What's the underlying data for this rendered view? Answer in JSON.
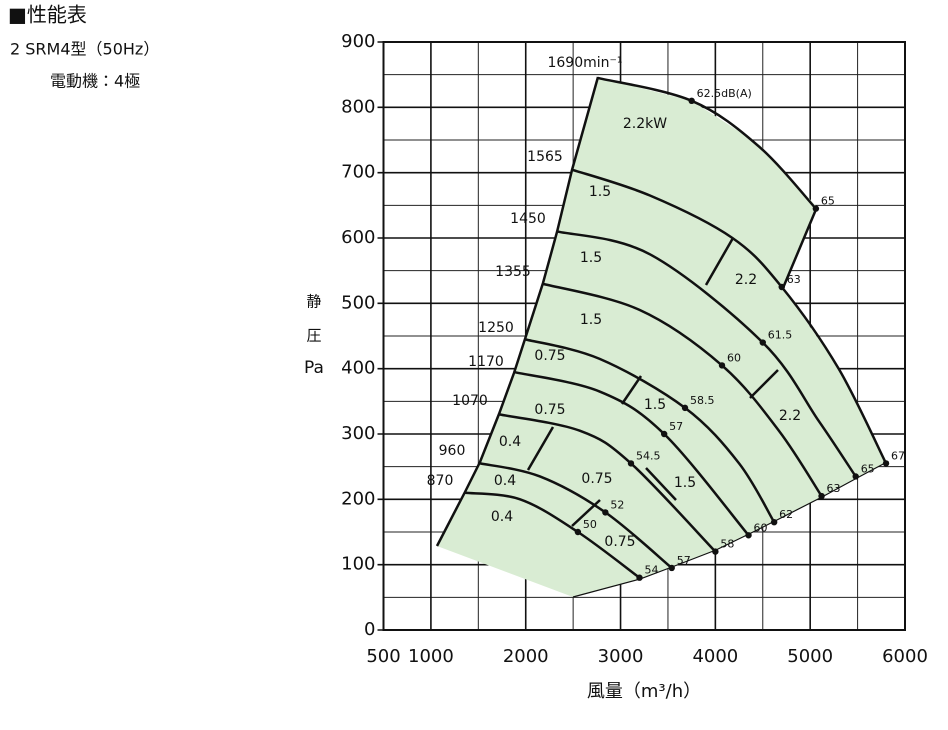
{
  "chart_data": {
    "type": "line",
    "title": "■性能表",
    "subtitle": "2 SRM4型（50Hz）",
    "note": "電動機：4極",
    "xlabel": "風量（m³/h）",
    "ylabel": [
      "静",
      "圧",
      "Pa"
    ],
    "xlim": [
      500,
      6000
    ],
    "xticks": [
      500,
      1000,
      2000,
      3000,
      4000,
      5000,
      6000
    ],
    "ylim": [
      0,
      900
    ],
    "yticks": [
      0,
      100,
      200,
      300,
      400,
      500,
      600,
      700,
      800,
      900
    ],
    "grid": true,
    "area_color": "#d9ecd3",
    "series": [
      {
        "name": "1690min⁻¹",
        "color": "#111111",
        "x": [
          2760,
          3750,
          4460,
          5060
        ],
        "y": [
          845,
          810,
          740,
          645
        ]
      },
      {
        "name": "1565",
        "color": "#111111",
        "x": [
          2480,
          3310,
          4180,
          4700,
          5300,
          5800
        ],
        "y": [
          705,
          665,
          600,
          525,
          400,
          255
        ]
      },
      {
        "name": "1450",
        "color": "#111111",
        "x": [
          2330,
          3310,
          4500,
          5090,
          5480
        ],
        "y": [
          610,
          575,
          440,
          320,
          235
        ]
      },
      {
        "name": "1355",
        "color": "#111111",
        "x": [
          2180,
          3200,
          4070,
          4670,
          5120
        ],
        "y": [
          530,
          490,
          405,
          305,
          205
        ]
      },
      {
        "name": "1250",
        "color": "#111111",
        "x": [
          1990,
          2780,
          3680,
          4250,
          4620
        ],
        "y": [
          445,
          415,
          340,
          255,
          165
        ]
      },
      {
        "name": "1170",
        "color": "#111111",
        "x": [
          1870,
          2780,
          3460,
          4350
        ],
        "y": [
          395,
          365,
          300,
          145
        ]
      },
      {
        "name": "1070",
        "color": "#111111",
        "x": [
          1720,
          2570,
          3110,
          4000
        ],
        "y": [
          330,
          305,
          255,
          120
        ]
      },
      {
        "name": "960",
        "color": "#111111",
        "x": [
          1520,
          2150,
          2840,
          3540
        ],
        "y": [
          255,
          235,
          180,
          95
        ]
      },
      {
        "name": "870",
        "color": "#111111",
        "x": [
          1360,
          1940,
          2550,
          3200
        ],
        "y": [
          210,
          200,
          150,
          80
        ]
      }
    ],
    "noise": {
      "x": [
        3750,
        5060,
        4700,
        4500,
        4070,
        3680,
        3460,
        3110,
        2840,
        2550,
        5800,
        5480,
        5120,
        4620,
        4350,
        4000,
        3540,
        3200
      ],
      "y": [
        810,
        645,
        525,
        440,
        405,
        340,
        300,
        255,
        180,
        150,
        255,
        235,
        205,
        165,
        145,
        120,
        95,
        80
      ],
      "labels": [
        "62.5dB(A)",
        "65",
        "63",
        "61.5",
        "60",
        "58.5",
        "57",
        "54.5",
        "52",
        "50",
        "67",
        "65",
        "63",
        "62",
        "60",
        "58",
        "57",
        "54"
      ]
    },
    "power_labels": [
      "2.2kW",
      "1.5",
      "1.5",
      "2.2",
      "1.5",
      "0.75",
      "1.5",
      "2.2",
      "0.75",
      "0.4",
      "0.4",
      "0.75",
      "1.5",
      "0.4",
      "0.75"
    ]
  }
}
